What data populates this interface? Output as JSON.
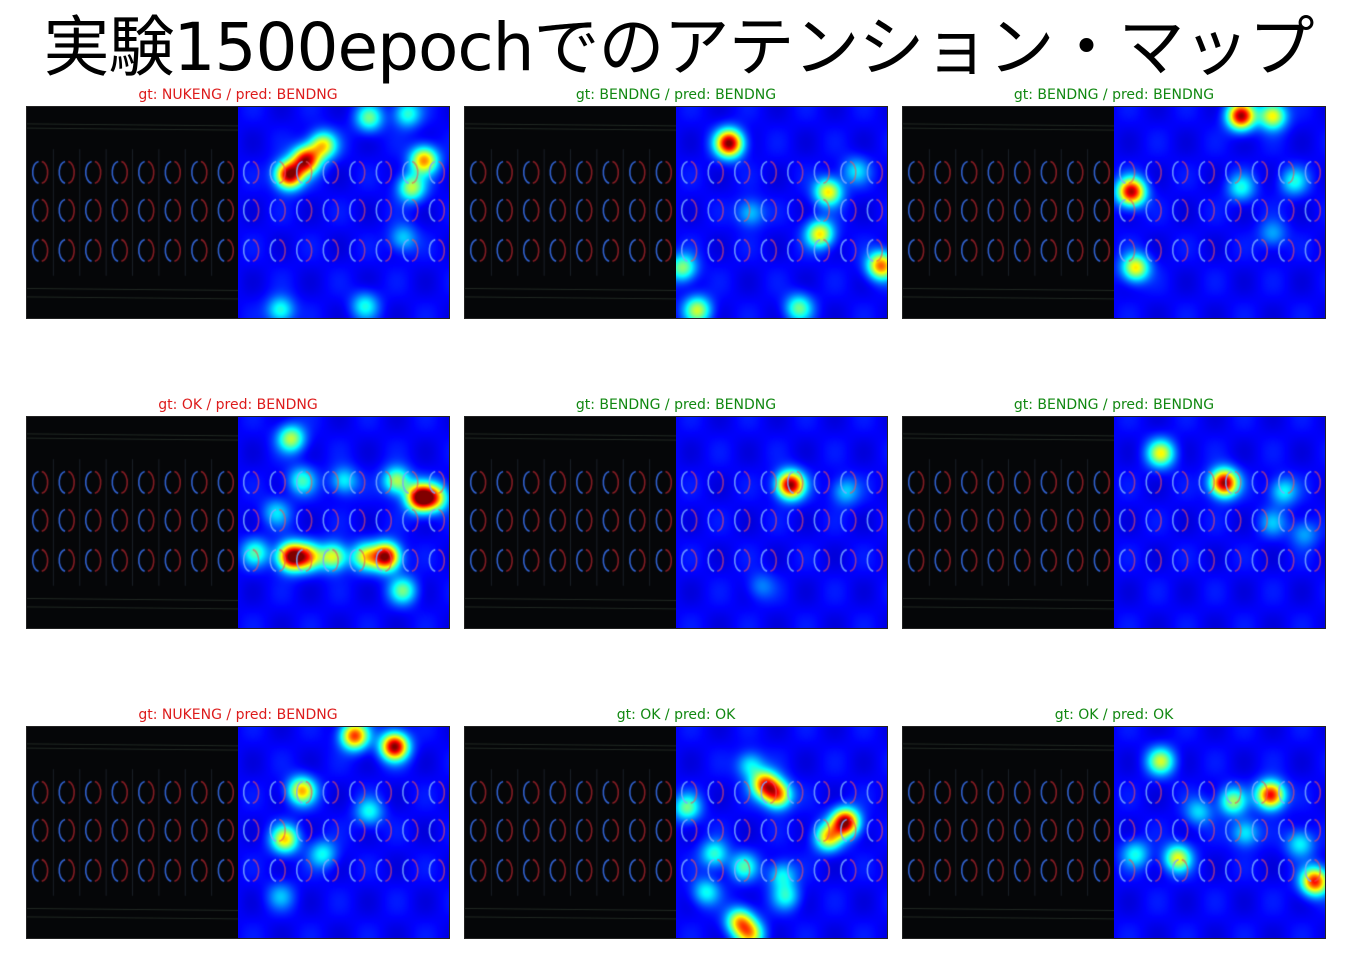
{
  "title": "実験1500epochでのアテンション・マップ",
  "colors": {
    "caption_wrong": "#dd1c1c",
    "caption_correct": "#118811",
    "heatmap_background": "#0c1a8c",
    "original_background": "#050608"
  },
  "panels": [
    {
      "caption": "gt: NUKENG / pred: BENDNG",
      "correct": false,
      "hotspots": [
        {
          "u": 0.24,
          "v": 0.32,
          "s": 1.0
        },
        {
          "u": 0.32,
          "v": 0.25,
          "s": 0.9
        },
        {
          "u": 0.4,
          "v": 0.18,
          "s": 0.6
        },
        {
          "u": 0.88,
          "v": 0.25,
          "s": 0.7
        },
        {
          "u": 0.82,
          "v": 0.38,
          "s": 0.5
        },
        {
          "u": 0.62,
          "v": 0.05,
          "s": 0.4
        },
        {
          "u": 0.8,
          "v": 0.03,
          "s": 0.35
        },
        {
          "u": 0.2,
          "v": 0.96,
          "s": 0.35
        },
        {
          "u": 0.78,
          "v": 0.62,
          "s": 0.25
        },
        {
          "u": 0.6,
          "v": 0.94,
          "s": 0.3
        }
      ]
    },
    {
      "caption": "gt: BENDNG / pred: BENDNG",
      "correct": true,
      "hotspots": [
        {
          "u": 0.25,
          "v": 0.17,
          "s": 1.0
        },
        {
          "u": 0.72,
          "v": 0.4,
          "s": 0.6
        },
        {
          "u": 0.68,
          "v": 0.6,
          "s": 0.6
        },
        {
          "u": 0.97,
          "v": 0.75,
          "s": 0.75
        },
        {
          "u": 0.03,
          "v": 0.76,
          "s": 0.45
        },
        {
          "u": 0.1,
          "v": 0.96,
          "s": 0.5
        },
        {
          "u": 0.58,
          "v": 0.95,
          "s": 0.4
        },
        {
          "u": 0.35,
          "v": 0.5,
          "s": 0.25
        },
        {
          "u": 0.85,
          "v": 0.3,
          "s": 0.25
        }
      ]
    },
    {
      "caption": "gt: BENDNG / pred: BENDNG",
      "correct": true,
      "hotspots": [
        {
          "u": 0.6,
          "v": 0.04,
          "s": 0.95
        },
        {
          "u": 0.75,
          "v": 0.04,
          "s": 0.6
        },
        {
          "u": 0.08,
          "v": 0.4,
          "s": 0.95
        },
        {
          "u": 0.1,
          "v": 0.76,
          "s": 0.6
        },
        {
          "u": 0.6,
          "v": 0.38,
          "s": 0.3
        },
        {
          "u": 0.85,
          "v": 0.35,
          "s": 0.3
        },
        {
          "u": 0.75,
          "v": 0.6,
          "s": 0.2
        }
      ]
    },
    {
      "caption": "gt: OK / pred: BENDNG",
      "correct": false,
      "hotspots": [
        {
          "u": 0.25,
          "v": 0.66,
          "s": 1.0
        },
        {
          "u": 0.33,
          "v": 0.66,
          "s": 0.6
        },
        {
          "u": 0.45,
          "v": 0.66,
          "s": 0.55
        },
        {
          "u": 0.6,
          "v": 0.66,
          "s": 0.5
        },
        {
          "u": 0.7,
          "v": 0.66,
          "s": 1.0
        },
        {
          "u": 0.08,
          "v": 0.64,
          "s": 0.35
        },
        {
          "u": 0.86,
          "v": 0.38,
          "s": 1.0
        },
        {
          "u": 0.93,
          "v": 0.38,
          "s": 0.6
        },
        {
          "u": 0.75,
          "v": 0.3,
          "s": 0.5
        },
        {
          "u": 0.25,
          "v": 0.1,
          "s": 0.5
        },
        {
          "u": 0.3,
          "v": 0.3,
          "s": 0.35
        },
        {
          "u": 0.5,
          "v": 0.3,
          "s": 0.3
        },
        {
          "u": 0.78,
          "v": 0.82,
          "s": 0.4
        },
        {
          "u": 0.18,
          "v": 0.45,
          "s": 0.25
        }
      ]
    },
    {
      "caption": "gt: BENDNG / pred: BENDNG",
      "correct": true,
      "hotspots": [
        {
          "u": 0.54,
          "v": 0.32,
          "s": 1.0
        },
        {
          "u": 0.8,
          "v": 0.35,
          "s": 0.25
        },
        {
          "u": 0.4,
          "v": 0.8,
          "s": 0.15
        }
      ]
    },
    {
      "caption": "gt: BENDNG / pred: BENDNG",
      "correct": true,
      "hotspots": [
        {
          "u": 0.52,
          "v": 0.31,
          "s": 1.0
        },
        {
          "u": 0.22,
          "v": 0.17,
          "s": 0.55
        },
        {
          "u": 0.8,
          "v": 0.35,
          "s": 0.3
        },
        {
          "u": 0.75,
          "v": 0.5,
          "s": 0.2
        },
        {
          "u": 0.9,
          "v": 0.55,
          "s": 0.2
        }
      ]
    },
    {
      "caption": "gt: NUKENG / pred: BENDNG",
      "correct": false,
      "hotspots": [
        {
          "u": 0.55,
          "v": 0.04,
          "s": 0.8
        },
        {
          "u": 0.74,
          "v": 0.09,
          "s": 1.0
        },
        {
          "u": 0.3,
          "v": 0.3,
          "s": 0.65
        },
        {
          "u": 0.22,
          "v": 0.53,
          "s": 0.6
        },
        {
          "u": 0.62,
          "v": 0.4,
          "s": 0.3
        },
        {
          "u": 0.4,
          "v": 0.6,
          "s": 0.3
        },
        {
          "u": 0.2,
          "v": 0.8,
          "s": 0.2
        }
      ]
    },
    {
      "caption": "gt: OK / pred: OK",
      "correct": true,
      "hotspots": [
        {
          "u": 0.42,
          "v": 0.27,
          "s": 0.75
        },
        {
          "u": 0.48,
          "v": 0.32,
          "s": 0.7
        },
        {
          "u": 0.8,
          "v": 0.45,
          "s": 1.0
        },
        {
          "u": 0.72,
          "v": 0.52,
          "s": 0.6
        },
        {
          "u": 0.05,
          "v": 0.38,
          "s": 0.4
        },
        {
          "u": 0.18,
          "v": 0.6,
          "s": 0.35
        },
        {
          "u": 0.32,
          "v": 0.66,
          "s": 0.35
        },
        {
          "u": 0.5,
          "v": 0.7,
          "s": 0.3
        },
        {
          "u": 0.52,
          "v": 0.8,
          "s": 0.3
        },
        {
          "u": 0.3,
          "v": 0.92,
          "s": 0.6
        },
        {
          "u": 0.35,
          "v": 0.98,
          "s": 0.55
        },
        {
          "u": 0.35,
          "v": 0.18,
          "s": 0.3
        },
        {
          "u": 0.14,
          "v": 0.78,
          "s": 0.3
        }
      ]
    },
    {
      "caption": "gt: OK / pred: OK",
      "correct": true,
      "hotspots": [
        {
          "u": 0.74,
          "v": 0.32,
          "s": 0.9
        },
        {
          "u": 0.22,
          "v": 0.16,
          "s": 0.5
        },
        {
          "u": 0.56,
          "v": 0.35,
          "s": 0.45
        },
        {
          "u": 0.62,
          "v": 0.5,
          "s": 0.3
        },
        {
          "u": 0.3,
          "v": 0.62,
          "s": 0.55
        },
        {
          "u": 0.1,
          "v": 0.6,
          "s": 0.3
        },
        {
          "u": 0.95,
          "v": 0.73,
          "s": 0.85
        },
        {
          "u": 0.88,
          "v": 0.55,
          "s": 0.3
        },
        {
          "u": 0.4,
          "v": 0.4,
          "s": 0.25
        }
      ]
    }
  ]
}
